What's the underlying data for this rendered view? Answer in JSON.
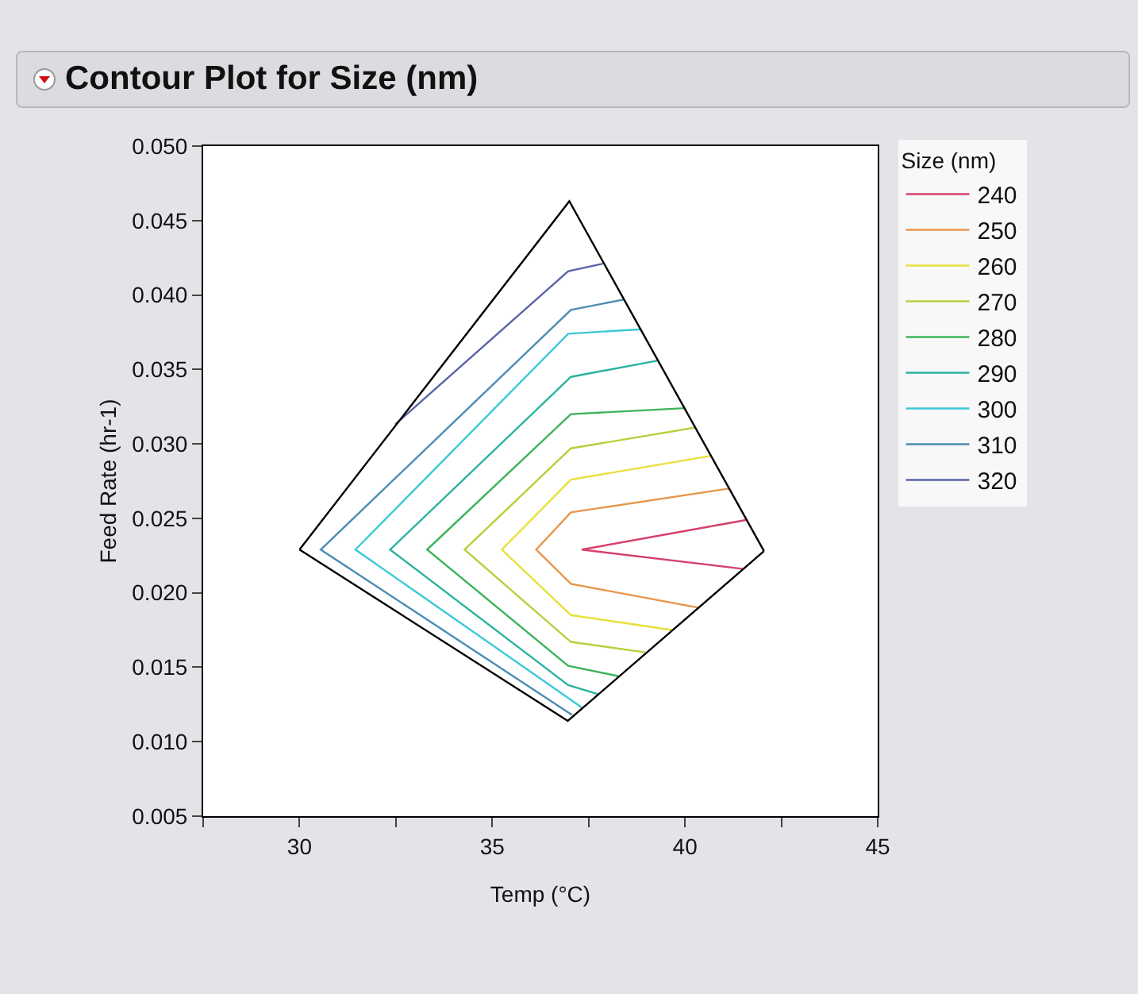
{
  "chart_data": {
    "type": "line",
    "title": "Contour Plot for Size (nm)",
    "xlabel": "Temp (°C)",
    "ylabel": "Feed Rate (hr-1)",
    "legend_title": "Size (nm)",
    "legend": "top right",
    "grid": false,
    "marker": "none",
    "line_style": "solid",
    "xlim": [
      27.5,
      45
    ],
    "xticks": [
      {
        "value": 27.5,
        "label": null
      },
      30,
      {
        "value": 32.5,
        "label": null
      },
      35,
      {
        "value": 37.5,
        "label": null
      },
      40,
      {
        "value": 42.5,
        "label": null
      },
      45
    ],
    "ylim": [
      0.005,
      0.05
    ],
    "yticks": [
      {
        "value": 0.005,
        "label": "0.005"
      },
      {
        "value": 0.01,
        "label": "0.010"
      },
      {
        "value": 0.015,
        "label": "0.015"
      },
      {
        "value": 0.02,
        "label": "0.020"
      },
      {
        "value": 0.025,
        "label": "0.025"
      },
      {
        "value": 0.03,
        "label": "0.030"
      },
      {
        "value": 0.035,
        "label": "0.035"
      },
      {
        "value": 0.04,
        "label": "0.040"
      },
      {
        "value": 0.045,
        "label": "0.045"
      },
      {
        "value": 0.05,
        "label": "0.050"
      }
    ],
    "series": [
      {
        "name": "240",
        "color": "#d6406a",
        "x": [
          41.61,
          37.32,
          41.52
        ],
        "values": [
          0.0249,
          0.0229,
          0.0216
        ]
      },
      {
        "name": "250",
        "color": "#e8964a",
        "x": [
          41.14,
          37.04,
          36.14,
          37.04,
          40.35
        ],
        "values": [
          0.027,
          0.0254,
          0.0229,
          0.0206,
          0.019
        ]
      },
      {
        "name": "260",
        "color": "#e6e03a",
        "x": [
          40.68,
          37.04,
          35.25,
          37.04,
          39.66
        ],
        "values": [
          0.0292,
          0.0276,
          0.0229,
          0.0185,
          0.0175
        ]
      },
      {
        "name": "270",
        "color": "#b4d23c",
        "x": [
          40.27,
          37.04,
          34.28,
          37.04,
          38.97
        ],
        "values": [
          0.0311,
          0.0297,
          0.0229,
          0.0167,
          0.016
        ]
      },
      {
        "name": "280",
        "color": "#3cb45a",
        "x": [
          39.99,
          37.04,
          33.31,
          36.97,
          38.28
        ],
        "values": [
          0.0324,
          0.032,
          0.0229,
          0.0151,
          0.0144
        ]
      },
      {
        "name": "290",
        "color": "#2ab4a0",
        "x": [
          39.3,
          37.04,
          32.35,
          36.97,
          37.73
        ],
        "values": [
          0.0356,
          0.0345,
          0.0229,
          0.0138,
          0.0132
        ]
      },
      {
        "name": "300",
        "color": "#3cc8d8",
        "x": [
          38.86,
          36.97,
          31.45,
          37.32
        ],
        "values": [
          0.0377,
          0.0374,
          0.0229,
          0.0123
        ]
      },
      {
        "name": "310",
        "color": "#4a8cb4",
        "x": [
          38.43,
          37.04,
          30.55,
          37.07
        ],
        "values": [
          0.0397,
          0.039,
          0.0229,
          0.0118
        ]
      },
      {
        "name": "320",
        "color": "#5a64a8",
        "x": [
          37.87,
          36.97,
          32.48
        ],
        "values": [
          0.0421,
          0.0416,
          0.0313
        ]
      },
      {
        "color": "#000000",
        "x": [
          30,
          37,
          42.05
        ],
        "values": [
          0.0229,
          0.0463,
          0.0228
        ]
      },
      {
        "color": "#000000",
        "x": [
          30,
          36.96,
          42.05
        ],
        "values": [
          0.0229,
          0.0114,
          0.0228
        ]
      }
    ]
  }
}
